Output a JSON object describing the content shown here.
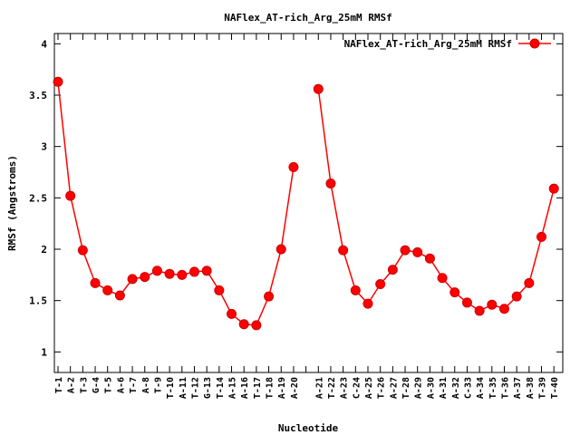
{
  "chart_data": {
    "type": "line",
    "title": "NAFlex_AT-rich_Arg_25mM RMSf",
    "xlabel": "Nucleotide",
    "ylabel": "RMSf (Angstroms)",
    "ylim": [
      0.8,
      4.1
    ],
    "yticks": [
      "1",
      "1.5",
      "2",
      "2.5",
      "3",
      "3.5",
      "4"
    ],
    "ytick_values": [
      1,
      1.5,
      2,
      2.5,
      3,
      3.5,
      4
    ],
    "legend_position": "top-right",
    "grid": false,
    "colors": {
      "series": "#ff0000",
      "marker_edge": "#cc0000"
    },
    "categories": [
      "T-1",
      "A-2",
      "T-3",
      "G-4",
      "T-5",
      "A-6",
      "T-7",
      "A-8",
      "T-9",
      "T-10",
      "A-11",
      "T-12",
      "G-13",
      "T-14",
      "A-15",
      "A-16",
      "T-17",
      "T-18",
      "A-19",
      "A-20",
      "",
      "A-21",
      "T-22",
      "A-23",
      "C-24",
      "A-25",
      "T-26",
      "A-27",
      "T-28",
      "A-29",
      "A-30",
      "A-31",
      "A-32",
      "C-33",
      "A-34",
      "T-35",
      "T-36",
      "A-37",
      "A-38",
      "T-39",
      "T-40"
    ],
    "series": [
      {
        "name": "NAFlex_AT-rich_Arg_25mM RMSf",
        "values": [
          3.63,
          2.52,
          1.99,
          1.67,
          1.6,
          1.55,
          1.71,
          1.73,
          1.79,
          1.76,
          1.75,
          1.78,
          1.79,
          1.6,
          1.37,
          1.27,
          1.26,
          1.54,
          2.0,
          2.8,
          null,
          3.56,
          2.64,
          1.99,
          1.6,
          1.47,
          1.66,
          1.8,
          1.99,
          1.97,
          1.91,
          1.72,
          1.58,
          1.48,
          1.4,
          1.46,
          1.42,
          1.54,
          1.67,
          2.12,
          2.59
        ]
      }
    ]
  }
}
